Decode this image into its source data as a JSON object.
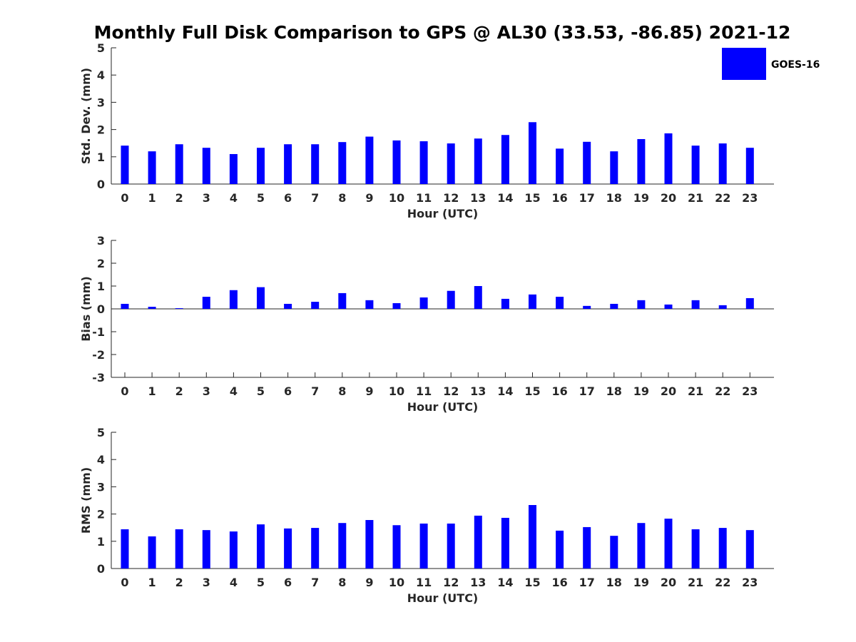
{
  "title": "Monthly Full Disk Comparison to GPS @ AL30 (33.53, -86.85) 2021-12",
  "legend": {
    "label": "GOES-16",
    "color": "#0000ff"
  },
  "chart_data": [
    {
      "type": "bar",
      "ylabel": "Std. Dev. (mm)",
      "xlabel": "Hour (UTC)",
      "ylim": [
        0,
        5
      ],
      "yticks": [
        0,
        1,
        2,
        3,
        4,
        5
      ],
      "categories": [
        0,
        1,
        2,
        3,
        4,
        5,
        6,
        7,
        8,
        9,
        10,
        11,
        12,
        13,
        14,
        15,
        16,
        17,
        18,
        19,
        20,
        21,
        22,
        23
      ],
      "series": [
        {
          "name": "GOES-16",
          "color": "#0000ff",
          "values": [
            1.41,
            1.2,
            1.46,
            1.33,
            1.1,
            1.33,
            1.46,
            1.46,
            1.54,
            1.74,
            1.6,
            1.57,
            1.49,
            1.67,
            1.8,
            2.27,
            1.3,
            1.55,
            1.2,
            1.65,
            1.86,
            1.41,
            1.49,
            1.33
          ]
        }
      ],
      "grid": false
    },
    {
      "type": "bar",
      "ylabel": "Bias (mm)",
      "xlabel": "Hour (UTC)",
      "ylim": [
        -3,
        3
      ],
      "yticks": [
        -3,
        -2,
        -1,
        0,
        1,
        2,
        3
      ],
      "categories": [
        0,
        1,
        2,
        3,
        4,
        5,
        6,
        7,
        8,
        9,
        10,
        11,
        12,
        13,
        14,
        15,
        16,
        17,
        18,
        19,
        20,
        21,
        22,
        23
      ],
      "series": [
        {
          "name": "GOES-16",
          "color": "#0000ff",
          "values": [
            0.22,
            0.09,
            0.03,
            0.53,
            0.82,
            0.95,
            0.22,
            0.31,
            0.69,
            0.38,
            0.25,
            0.5,
            0.79,
            1.0,
            0.44,
            0.63,
            0.53,
            0.13,
            0.22,
            0.38,
            0.19,
            0.38,
            0.16,
            0.47
          ]
        }
      ],
      "grid": false
    },
    {
      "type": "bar",
      "ylabel": "RMS (mm)",
      "xlabel": "Hour (UTC)",
      "ylim": [
        0,
        5
      ],
      "yticks": [
        0,
        1,
        2,
        3,
        4,
        5
      ],
      "categories": [
        0,
        1,
        2,
        3,
        4,
        5,
        6,
        7,
        8,
        9,
        10,
        11,
        12,
        13,
        14,
        15,
        16,
        17,
        18,
        19,
        20,
        21,
        22,
        23
      ],
      "series": [
        {
          "name": "GOES-16",
          "color": "#0000ff",
          "values": [
            1.44,
            1.18,
            1.44,
            1.41,
            1.36,
            1.62,
            1.47,
            1.49,
            1.67,
            1.78,
            1.59,
            1.65,
            1.65,
            1.94,
            1.86,
            2.33,
            1.39,
            1.52,
            1.2,
            1.67,
            1.83,
            1.44,
            1.49,
            1.41
          ]
        }
      ],
      "grid": false
    }
  ]
}
